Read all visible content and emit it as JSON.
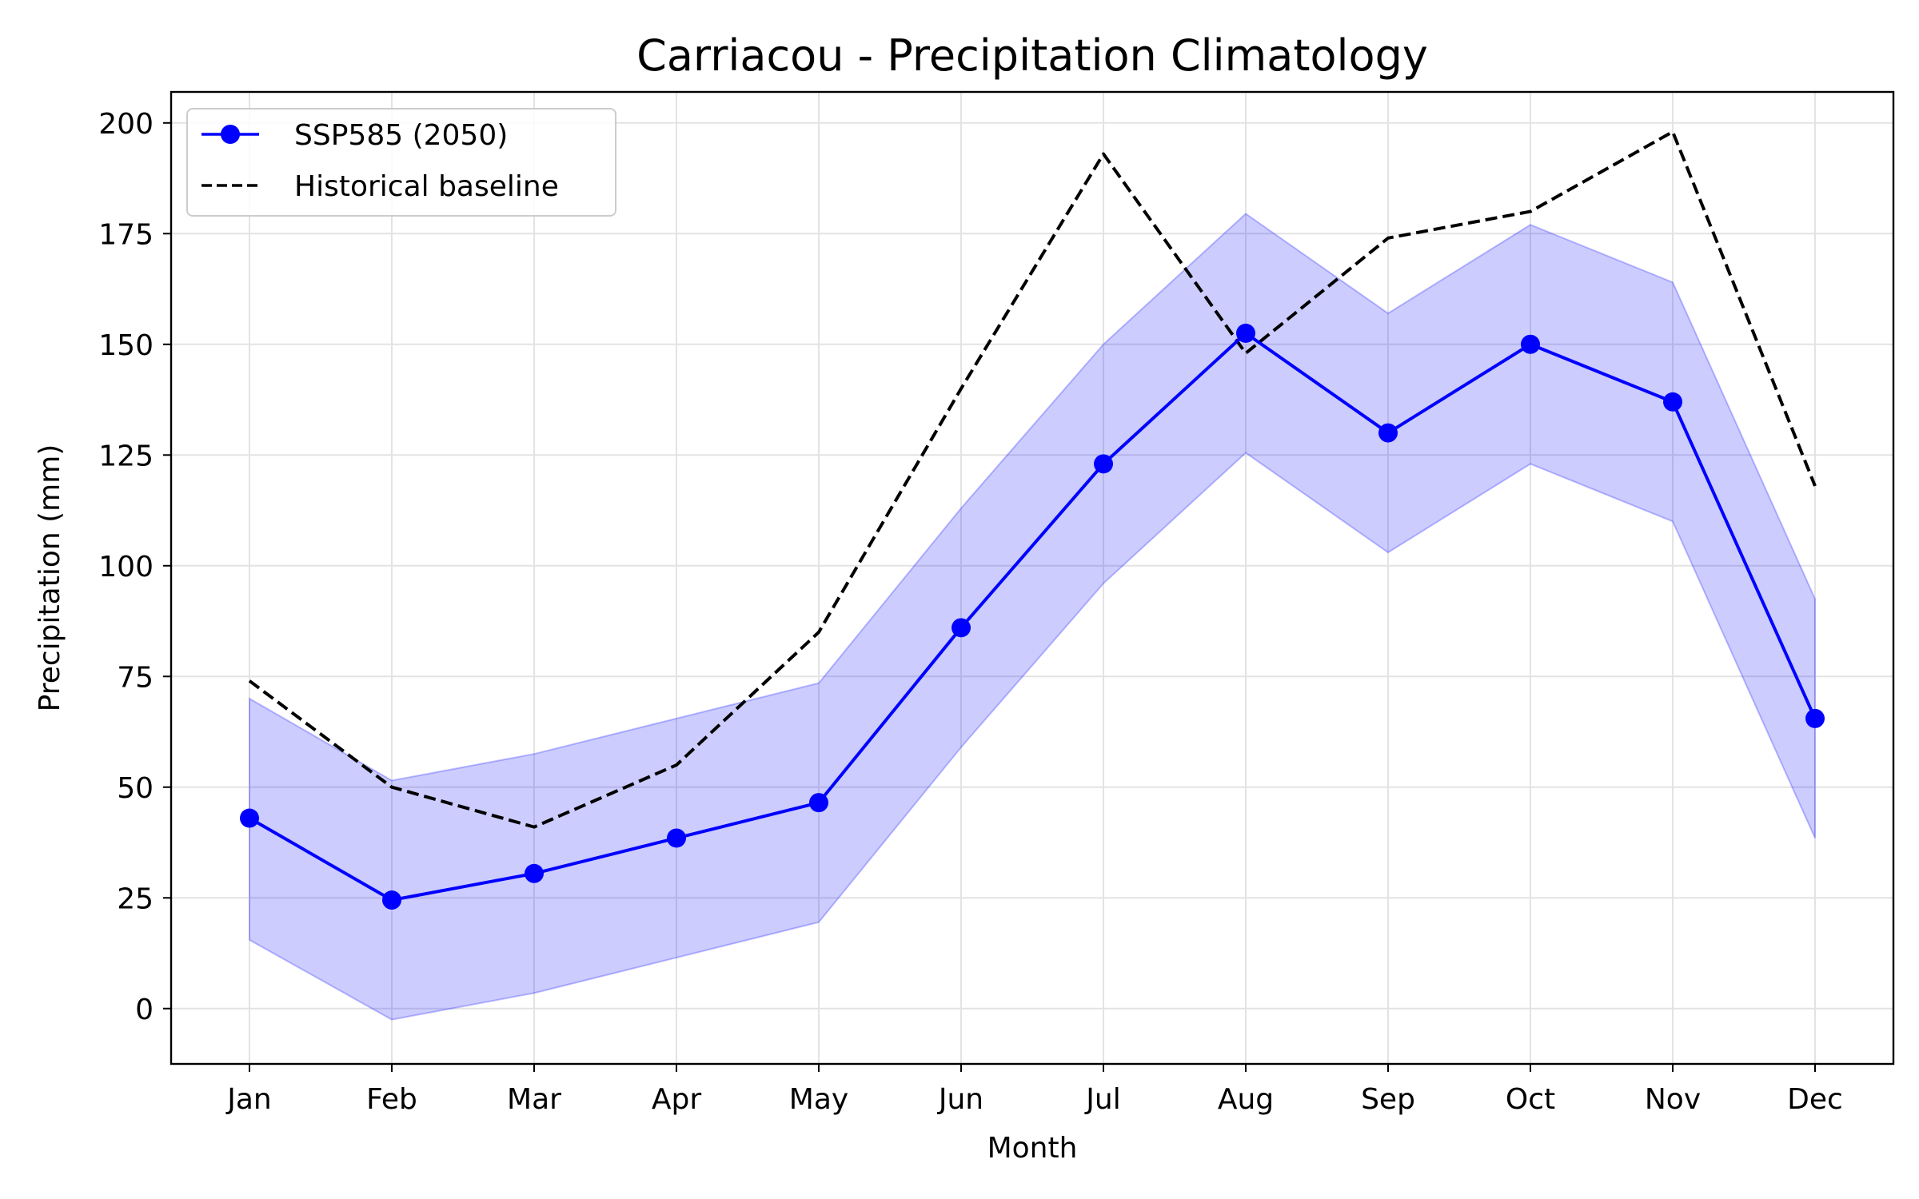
{
  "chart_data": {
    "type": "line",
    "title": "Carriacou - Precipitation Climatology",
    "xlabel": "Month",
    "ylabel": "Precipitation (mm)",
    "categories": [
      "Jan",
      "Feb",
      "Mar",
      "Apr",
      "May",
      "Jun",
      "Jul",
      "Aug",
      "Sep",
      "Oct",
      "Nov",
      "Dec"
    ],
    "ylim": [
      -12.5,
      207
    ],
    "yticks": [
      0,
      25,
      50,
      75,
      100,
      125,
      150,
      175,
      200
    ],
    "grid": true,
    "legend_position": "top-left",
    "series": [
      {
        "name": "SSP585 (2050)",
        "style": "solid line with circle markers",
        "color": "#0000ff",
        "values": [
          43,
          24.5,
          30.5,
          38.5,
          46.5,
          86,
          123,
          152.5,
          130,
          150,
          137,
          65.5
        ],
        "band_lower": [
          15.5,
          -2.5,
          3.5,
          11.5,
          19.5,
          59,
          96,
          125.5,
          103,
          123,
          110,
          38.5
        ],
        "band_upper": [
          70,
          51.5,
          57.5,
          65.5,
          73.5,
          113,
          150,
          179.5,
          157,
          177,
          164,
          92.5
        ],
        "band_color": "#0000ff",
        "band_opacity": 0.2
      },
      {
        "name": "Historical baseline",
        "style": "dashed line",
        "color": "#000000",
        "values": [
          74,
          50,
          41,
          55,
          85,
          140,
          193,
          148,
          174,
          180,
          198,
          118
        ]
      }
    ]
  }
}
